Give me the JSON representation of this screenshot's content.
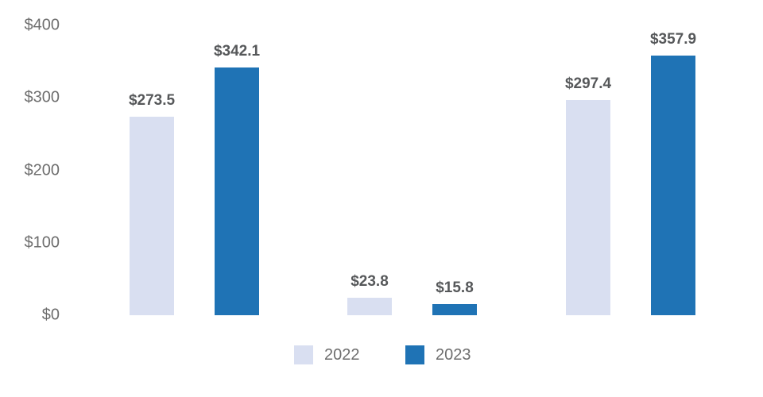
{
  "chart_data": {
    "type": "bar",
    "title": "",
    "xlabel": "",
    "ylabel": "",
    "categories": [
      "",
      "",
      ""
    ],
    "series": [
      {
        "name": "2022",
        "color": "#d9dff1",
        "values": [
          273.5,
          23.8,
          297.4
        ],
        "labels": [
          "$273.5",
          "$23.8",
          "$297.4"
        ]
      },
      {
        "name": "2023",
        "color": "#1f73b5",
        "values": [
          342.1,
          15.8,
          357.9
        ],
        "labels": [
          "$342.1",
          "$15.8",
          "$357.9"
        ]
      }
    ],
    "yticks": [
      {
        "value": 0,
        "label": "$0"
      },
      {
        "value": 100,
        "label": "$100"
      },
      {
        "value": 200,
        "label": "$200"
      },
      {
        "value": 300,
        "label": "$300"
      },
      {
        "value": 400,
        "label": "$400"
      }
    ],
    "ylim": [
      0,
      400
    ],
    "grid": false,
    "axis_line": false,
    "legend_position": "bottom",
    "value_prefix": "$",
    "colors": {
      "background": "#ffffff",
      "axis_text": "#6e6e6e",
      "value_label_text": "#56585a"
    }
  }
}
